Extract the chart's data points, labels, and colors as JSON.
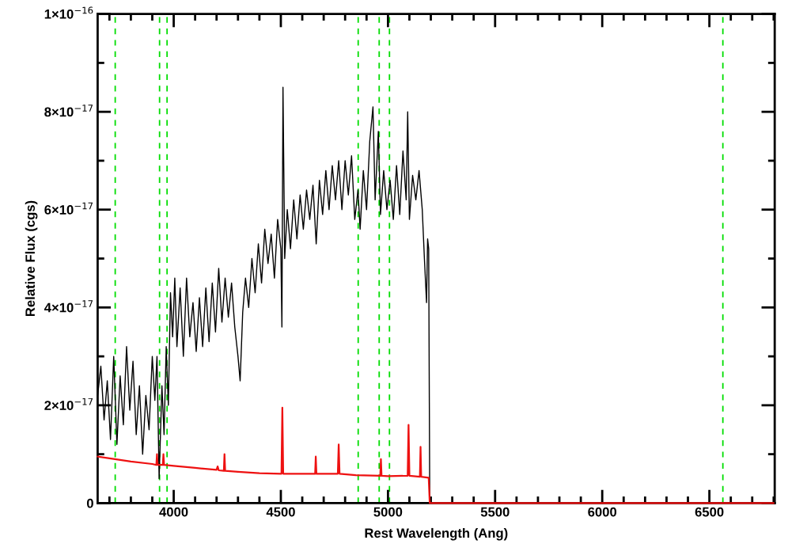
{
  "chart_data": {
    "type": "line",
    "xlabel": "Rest Wavelength (Ang)",
    "ylabel": "Relative Flux (cgs)",
    "xlim": [
      3645,
      6805
    ],
    "xticks": [
      4000,
      4500,
      5000,
      5500,
      6000,
      6500
    ],
    "ylim": [
      0,
      1e-16
    ],
    "yticks": [
      {
        "value": 0,
        "label": "0"
      },
      {
        "value": 2e-17,
        "label": "2×10$^{−17}$"
      },
      {
        "value": 4e-17,
        "label": "4×10$^{−17}$"
      },
      {
        "value": 6e-17,
        "label": "6×10$^{−17}$"
      },
      {
        "value": 8e-17,
        "label": "8×10$^{−17}$"
      },
      {
        "value": 1e-16,
        "label": "1×10$^{−16}$"
      }
    ],
    "grid": false,
    "marker": "none",
    "line_style": "solid",
    "series": [
      {
        "color": "#000000",
        "x": [
          3645,
          3660,
          3675,
          3690,
          3705,
          3720,
          3735,
          3750,
          3765,
          3780,
          3795,
          3810,
          3825,
          3840,
          3855,
          3870,
          3885,
          3900,
          3912,
          3922,
          3932,
          3945,
          3955,
          3965,
          3975,
          3985,
          3995,
          4005,
          4015,
          4030,
          4045,
          4060,
          4075,
          4090,
          4105,
          4120,
          4135,
          4150,
          4165,
          4180,
          4195,
          4210,
          4225,
          4240,
          4255,
          4270,
          4285,
          4300,
          4310,
          4322,
          4335,
          4350,
          4365,
          4380,
          4395,
          4410,
          4425,
          4440,
          4455,
          4470,
          4485,
          4500,
          4505,
          4510,
          4518,
          4530,
          4545,
          4560,
          4575,
          4590,
          4605,
          4620,
          4635,
          4650,
          4665,
          4680,
          4695,
          4710,
          4725,
          4740,
          4755,
          4770,
          4785,
          4800,
          4815,
          4830,
          4845,
          4860,
          4870,
          4885,
          4900,
          4915,
          4930,
          4940,
          4955,
          4965,
          4980,
          4995,
          5010,
          5025,
          5040,
          5055,
          5070,
          5085,
          5092,
          5100,
          5115,
          5130,
          5145,
          5160,
          5170,
          5180,
          5185,
          5190,
          5195
        ],
        "values": [
          2.2e-17,
          2.8e-17,
          1.7e-17,
          2.5e-17,
          1.3e-17,
          3e-17,
          1.2e-17,
          2.6e-17,
          1.6e-17,
          3.2e-17,
          1.9e-17,
          2.9e-17,
          1.4e-17,
          2.4e-17,
          1e-17,
          2.2e-17,
          1.5e-17,
          3e-17,
          2.1e-17,
          3e-17,
          5e-18,
          2.4e-17,
          1.4e-17,
          3.2e-17,
          2e-17,
          4.3e-17,
          3.4e-17,
          4.6e-17,
          3.2e-17,
          4.4e-17,
          3e-17,
          4.6e-17,
          3.4e-17,
          4.1e-17,
          3.1e-17,
          4.2e-17,
          3.2e-17,
          4.4e-17,
          3.3e-17,
          4.5e-17,
          3.5e-17,
          4.8e-17,
          3.7e-17,
          4.6e-17,
          3.8e-17,
          4.5e-17,
          3.6e-17,
          3e-17,
          2.5e-17,
          3.9e-17,
          4.6e-17,
          4e-17,
          5e-17,
          4.3e-17,
          5.3e-17,
          4.5e-17,
          5.6e-17,
          4.9e-17,
          5.5e-17,
          4.6e-17,
          5.8e-17,
          5.2e-17,
          3.6e-17,
          8.5e-17,
          5e-17,
          6e-17,
          5.2e-17,
          6.2e-17,
          5.4e-17,
          6.3e-17,
          5.6e-17,
          6.4e-17,
          5.8e-17,
          6.5e-17,
          5.3e-17,
          6.6e-17,
          5.9e-17,
          6.8e-17,
          6e-17,
          6.9e-17,
          6.2e-17,
          7e-17,
          6e-17,
          7e-17,
          6.3e-17,
          7.1e-17,
          5.8e-17,
          6.4e-17,
          5.6e-17,
          6.8e-17,
          6e-17,
          7.4e-17,
          8.1e-17,
          6.2e-17,
          7.6e-17,
          5.9e-17,
          6.8e-17,
          6e-17,
          6.6e-17,
          5.8e-17,
          6.9e-17,
          5.9e-17,
          7.2e-17,
          6.2e-17,
          8e-17,
          5.8e-17,
          6.7e-17,
          6.2e-17,
          6.8e-17,
          6e-17,
          5e-17,
          4.1e-17,
          5.4e-17,
          5.2e-17,
          0
        ]
      },
      {
        "color": "#ee1111",
        "x": [
          3645,
          3800,
          3900,
          3919,
          3922,
          3925,
          3949,
          3952,
          3955,
          4000,
          4100,
          4200,
          4205,
          4210,
          4234,
          4237,
          4240,
          4300,
          4400,
          4503,
          4507,
          4511,
          4600,
          4660,
          4663,
          4666,
          4766,
          4770,
          4774,
          4850,
          4964,
          4967,
          4970,
          5000,
          5092,
          5096,
          5100,
          5149,
          5152,
          5155,
          5190,
          5195,
          6800
        ],
        "values": [
          9.5e-18,
          8.5e-18,
          8e-18,
          7.8e-18,
          1e-17,
          7.8e-18,
          7.8e-18,
          1e-17,
          7.8e-18,
          7.6e-18,
          7.2e-18,
          6.8e-18,
          7.5e-18,
          6.7e-18,
          6.6e-18,
          1e-17,
          6.6e-18,
          6.4e-18,
          6.1e-18,
          6e-18,
          1.95e-17,
          6e-18,
          6e-18,
          6e-18,
          9.5e-18,
          6e-18,
          6e-18,
          1.2e-17,
          6e-18,
          5.7e-18,
          5.6e-18,
          9e-18,
          5.6e-18,
          5.5e-18,
          5.6e-18,
          1.6e-17,
          5.6e-18,
          5.4e-18,
          1.15e-17,
          5.4e-18,
          5.2e-18,
          0,
          0
        ]
      }
    ],
    "ref_lines": [
      {
        "axis": "x",
        "value": 3727,
        "color": "#00dd00",
        "line_style": "dashed"
      },
      {
        "axis": "x",
        "value": 3934,
        "color": "#00dd00",
        "line_style": "dashed"
      },
      {
        "axis": "x",
        "value": 3969,
        "color": "#00dd00",
        "line_style": "dashed"
      },
      {
        "axis": "x",
        "value": 4861,
        "color": "#00dd00",
        "line_style": "dashed"
      },
      {
        "axis": "x",
        "value": 4959,
        "color": "#00dd00",
        "line_style": "dashed"
      },
      {
        "axis": "x",
        "value": 5007,
        "color": "#00dd00",
        "line_style": "dashed"
      },
      {
        "axis": "x",
        "value": 6563,
        "color": "#00dd00",
        "line_style": "dashed"
      }
    ]
  }
}
